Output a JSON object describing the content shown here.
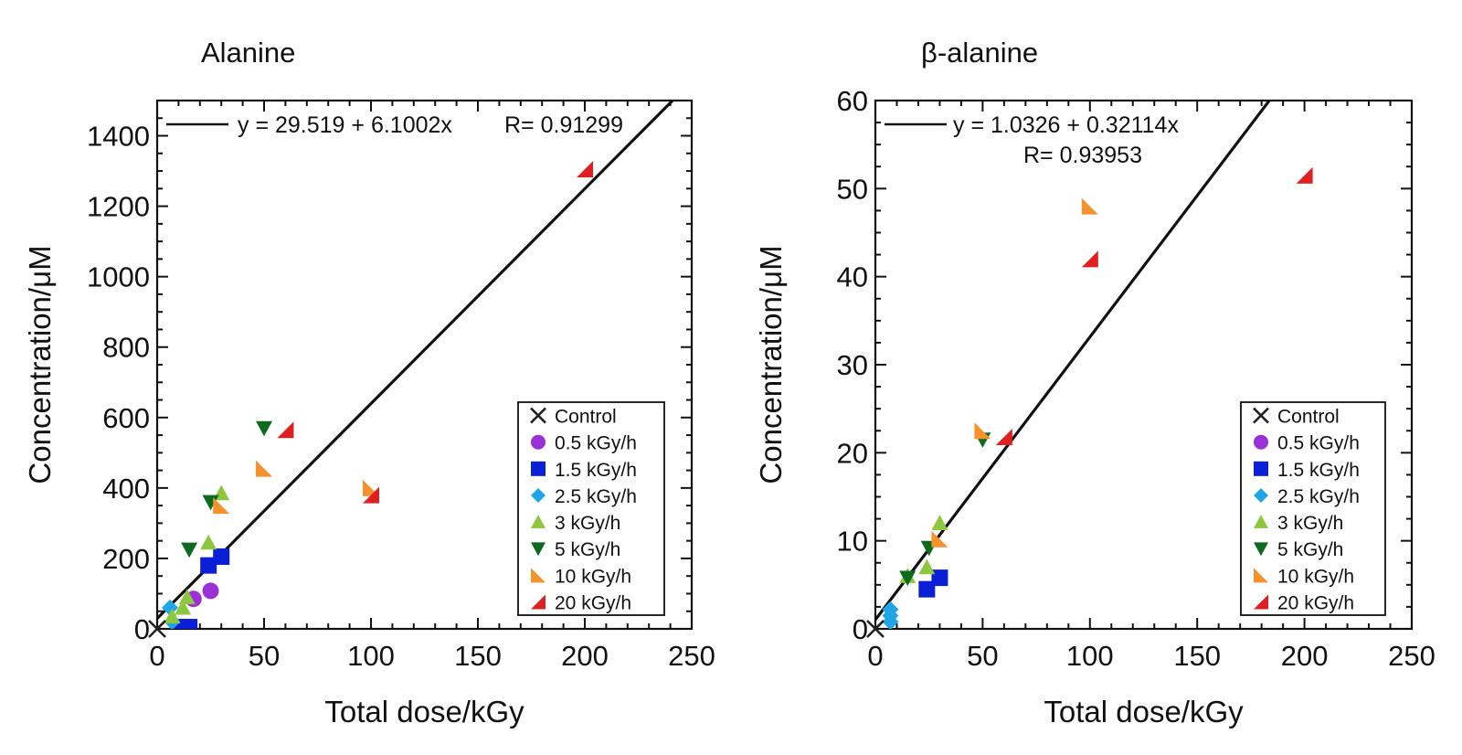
{
  "chart_data": [
    {
      "type": "scatter",
      "title": "Alanine",
      "xlabel": "Total dose/kGy",
      "ylabel": "Concentration/μM",
      "xlim": [
        0,
        250
      ],
      "ylim": [
        0,
        1500
      ],
      "xticks": [
        0,
        50,
        100,
        150,
        200,
        250
      ],
      "yticks": [
        0,
        200,
        400,
        600,
        800,
        1000,
        1200,
        1400
      ],
      "grid": false,
      "legend_position": "bottom-right",
      "fit": {
        "intercept": 29.519,
        "slope": 6.1002,
        "equation": "y = 29.519 + 6.1002x",
        "r_label": "R= 0.91299"
      },
      "series": [
        {
          "name": "Control",
          "marker": "x",
          "color": "#222222",
          "points": [
            [
              0,
              0
            ]
          ]
        },
        {
          "name": "0.5 kGy/h",
          "marker": "circle",
          "color": "#9b30d6",
          "points": [
            [
              17,
              85
            ],
            [
              25,
              108
            ]
          ]
        },
        {
          "name": "1.5 kGy/h",
          "marker": "square",
          "color": "#0a1fd6",
          "points": [
            [
              12,
              5
            ],
            [
              15,
              5
            ],
            [
              24,
              180
            ],
            [
              30,
              205
            ]
          ]
        },
        {
          "name": "2.5 kGy/h",
          "marker": "diamond",
          "color": "#1fa5e8",
          "points": [
            [
              6,
              60
            ],
            [
              7,
              20
            ]
          ]
        },
        {
          "name": "3 kGy/h",
          "marker": "triangle-up",
          "color": "#8dc63f",
          "points": [
            [
              7,
              35
            ],
            [
              12,
              60
            ],
            [
              14,
              90
            ],
            [
              24,
              245
            ],
            [
              30,
              385
            ]
          ]
        },
        {
          "name": "5 kGy/h",
          "marker": "triangle-down",
          "color": "#0d6b1f",
          "points": [
            [
              15,
              225
            ],
            [
              25,
              360
            ],
            [
              50,
              570
            ]
          ]
        },
        {
          "name": "10 kGy/h",
          "marker": "half-up",
          "color": "#f5922b",
          "points": [
            [
              30,
              350
            ],
            [
              50,
              455
            ],
            [
              100,
              400
            ]
          ]
        },
        {
          "name": "20 kGy/h",
          "marker": "half-down",
          "color": "#e02020",
          "points": [
            [
              60,
              565
            ],
            [
              100,
              380
            ],
            [
              200,
              1305
            ]
          ]
        }
      ]
    },
    {
      "type": "scatter",
      "title": "β-alanine",
      "xlabel": "Total dose/kGy",
      "ylabel": "Concentration/μM",
      "xlim": [
        0,
        250
      ],
      "ylim": [
        0,
        60
      ],
      "xticks": [
        0,
        50,
        100,
        150,
        200,
        250
      ],
      "yticks": [
        0,
        10,
        20,
        30,
        40,
        50,
        60
      ],
      "grid": false,
      "legend_position": "bottom-right",
      "fit": {
        "intercept": 1.0326,
        "slope": 0.32114,
        "equation": "y = 1.0326 + 0.32114x",
        "r_label": "R= 0.93953"
      },
      "series": [
        {
          "name": "Control",
          "marker": "x",
          "color": "#222222",
          "points": [
            [
              0,
              0
            ]
          ]
        },
        {
          "name": "0.5 kGy/h",
          "marker": "circle",
          "color": "#9b30d6",
          "points": []
        },
        {
          "name": "1.5 kGy/h",
          "marker": "square",
          "color": "#0a1fd6",
          "points": [
            [
              24,
              4.5
            ],
            [
              30,
              5.8
            ]
          ]
        },
        {
          "name": "2.5 kGy/h",
          "marker": "diamond",
          "color": "#1fa5e8",
          "points": [
            [
              7,
              0.8
            ],
            [
              7,
              1.5
            ],
            [
              7,
              2.2
            ]
          ]
        },
        {
          "name": "3 kGy/h",
          "marker": "triangle-up",
          "color": "#8dc63f",
          "points": [
            [
              15,
              6
            ],
            [
              24,
              7
            ],
            [
              30,
              12
            ]
          ]
        },
        {
          "name": "5 kGy/h",
          "marker": "triangle-down",
          "color": "#0d6b1f",
          "points": [
            [
              15,
              5.8
            ],
            [
              25,
              9.2
            ],
            [
              50,
              21.5
            ]
          ]
        },
        {
          "name": "10 kGy/h",
          "marker": "half-up",
          "color": "#f5922b",
          "points": [
            [
              30,
              10.2
            ],
            [
              50,
              22.5
            ],
            [
              100,
              48
            ]
          ]
        },
        {
          "name": "20 kGy/h",
          "marker": "half-down",
          "color": "#e02020",
          "points": [
            [
              60,
              21.8
            ],
            [
              100,
              42
            ],
            [
              200,
              51.5
            ]
          ]
        }
      ]
    }
  ]
}
